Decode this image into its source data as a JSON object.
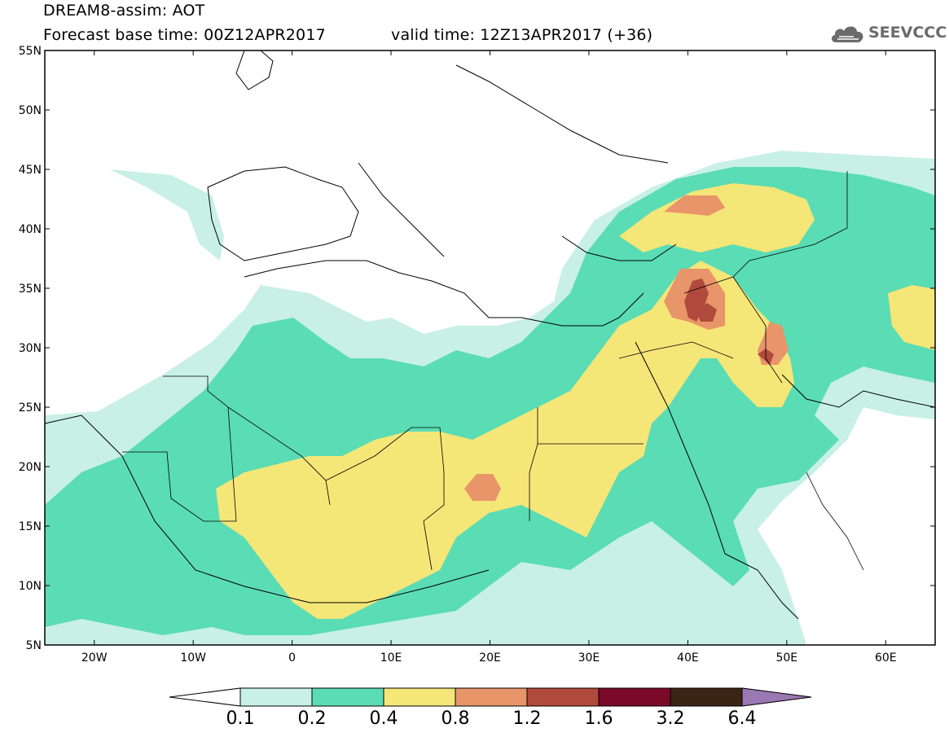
{
  "header": {
    "title": "DREAM8-assim: AOT",
    "base_time": "Forecast base time: 00Z12APR2017",
    "valid_time": "valid time: 12Z13APR2017 (+36)",
    "logo_text": "SEEVCCC"
  },
  "axes": {
    "lat_labels": [
      "55N",
      "50N",
      "45N",
      "40N",
      "35N",
      "30N",
      "25N",
      "20N",
      "15N",
      "10N",
      "5N"
    ],
    "lon_labels": [
      "20W",
      "10W",
      "0",
      "10E",
      "20E",
      "30E",
      "40E",
      "50E",
      "60E"
    ]
  },
  "colorbar": {
    "labels": [
      "0.1",
      "0.2",
      "0.4",
      "0.8",
      "1.2",
      "1.6",
      "3.2",
      "6.4"
    ],
    "colors": [
      "#c8f0e6",
      "#5adcb4",
      "#f5e678",
      "#e8956a",
      "#b04a3c",
      "#7a0a28",
      "#3a2414",
      "#9a78b4"
    ]
  },
  "map": {
    "domain": {
      "lon_min": -25,
      "lon_max": 65,
      "lat_min": 5,
      "lat_max": 55
    },
    "colors": {
      "c1": "#c8f0e6",
      "c2": "#5adcb4",
      "c3": "#f5e678",
      "c4": "#e8956a",
      "c5": "#b04a3c",
      "c6": "#7a0a28"
    }
  }
}
